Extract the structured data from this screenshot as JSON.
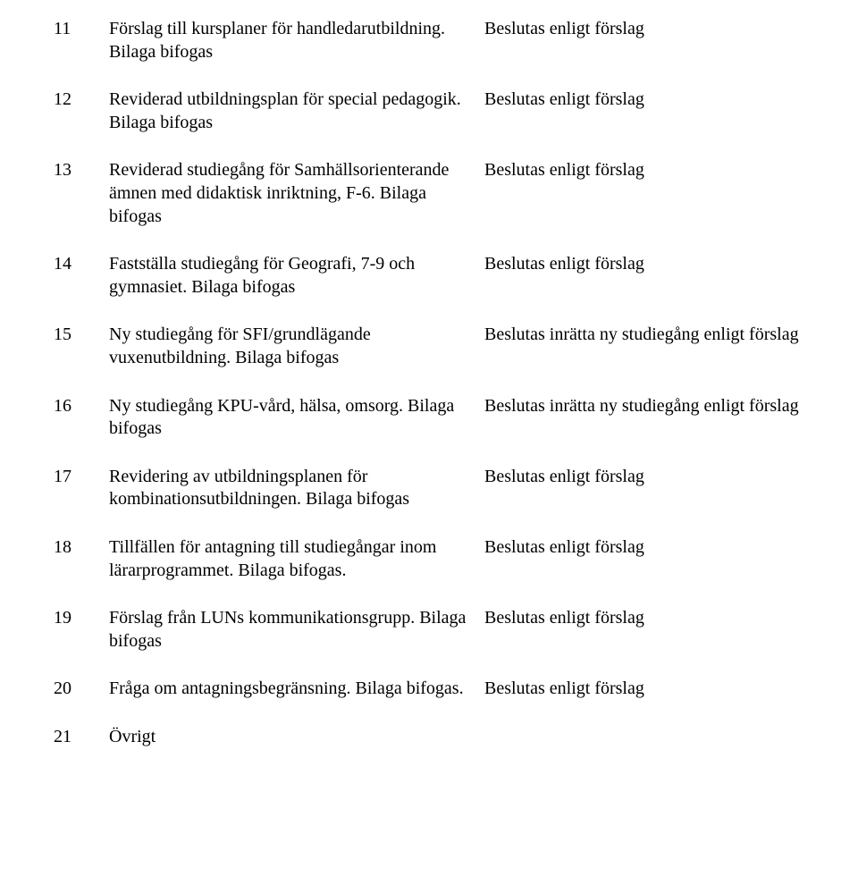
{
  "rows": [
    {
      "num": "11",
      "desc": "Förslag till kursplaner för handledarutbildning. Bilaga bifogas",
      "decision": "Beslutas enligt förslag"
    },
    {
      "num": "12",
      "desc": "Reviderad utbildningsplan för special pedagogik. Bilaga bifogas",
      "decision": "Beslutas enligt förslag"
    },
    {
      "num": "13",
      "desc": "Reviderad studiegång för Samhällsorienterande ämnen med didaktisk inriktning, F-6. Bilaga bifogas",
      "decision": "Beslutas enligt förslag"
    },
    {
      "num": "14",
      "desc": "Fastställa studiegång för Geografi, 7-9 och gymnasiet. Bilaga bifogas",
      "decision": "Beslutas enligt förslag"
    },
    {
      "num": "15",
      "desc": "Ny studiegång för SFI/grundlägande vuxenutbildning. Bilaga bifogas",
      "decision": "Beslutas inrätta ny studiegång enligt förslag"
    },
    {
      "num": "16",
      "desc": "Ny studiegång KPU-vård, hälsa, omsorg. Bilaga bifogas",
      "decision": "Beslutas inrätta ny studiegång enligt förslag"
    },
    {
      "num": "17",
      "desc": "Revidering av utbildningsplanen för kombinationsutbildningen. Bilaga bifogas",
      "decision": "Beslutas enligt förslag"
    },
    {
      "num": "18",
      "desc": "Tillfällen för antagning till studiegångar inom lärarprogrammet. Bilaga bifogas.",
      "decision": "Beslutas enligt förslag"
    },
    {
      "num": "19",
      "desc": "Förslag från LUNs kommunikationsgrupp. Bilaga bifogas",
      "decision": "Beslutas enligt förslag"
    },
    {
      "num": "20",
      "desc": "Fråga om antagningsbegränsning. Bilaga bifogas.",
      "decision": "Beslutas enligt förslag"
    },
    {
      "num": "21",
      "desc": "Övrigt",
      "decision": ""
    }
  ]
}
